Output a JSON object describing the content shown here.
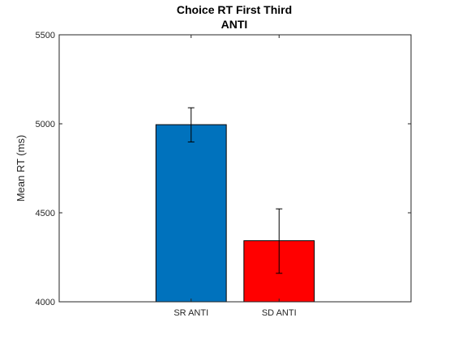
{
  "chart_data": {
    "type": "bar",
    "title": "Choice RT First Third",
    "subtitle": "ANTI",
    "xlabel": "",
    "ylabel": "Mean RT (ms)",
    "ylim": [
      4000,
      5500
    ],
    "yticks": [
      4000,
      4500,
      5000,
      5500
    ],
    "categories": [
      "SR ANTI",
      "SD ANTI"
    ],
    "values": [
      4995,
      4343
    ],
    "error_low": [
      4898,
      4160
    ],
    "error_high": [
      5090,
      4522
    ],
    "colors": [
      "#0072BD",
      "#FF0000"
    ],
    "grid": false
  }
}
